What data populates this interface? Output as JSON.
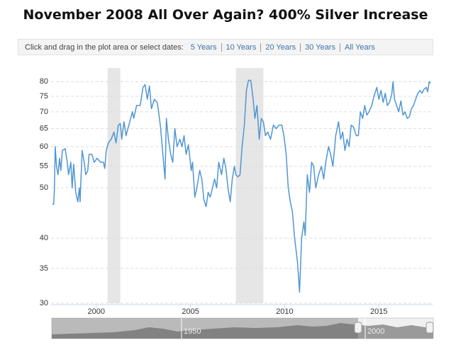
{
  "chart_data": {
    "type": "line",
    "title": "November 2008 All Over Again? 400% Silver Increase",
    "zoom_prompt": "Click and drag in the plot area or select dates:",
    "zoom_options": [
      "5 Years",
      "10 Years",
      "20 Years",
      "30 Years",
      "All Years"
    ],
    "navigator_labels": [
      "1950",
      "2000"
    ],
    "x": [
      1997.67,
      1997.74,
      1997.78,
      1997.82,
      1997.89,
      1997.97,
      1998.05,
      1998.12,
      1998.2,
      1998.35,
      1998.46,
      1998.53,
      1998.65,
      1998.72,
      1998.8,
      1998.91,
      1999.02,
      1999.1,
      1999.14,
      1999.25,
      1999.36,
      1999.44,
      1999.55,
      1999.62,
      1999.77,
      1999.89,
      2000.04,
      2000.23,
      2000.38,
      2000.45,
      2000.53,
      2000.64,
      2000.79,
      2000.94,
      2001.05,
      2001.17,
      2001.28,
      2001.35,
      2001.47,
      2001.58,
      2001.73,
      2001.92,
      2001.99,
      2002.14,
      2002.33,
      2002.48,
      2002.59,
      2002.71,
      2002.82,
      2002.93,
      2003.08,
      2003.23,
      2003.31,
      2003.42,
      2003.5,
      2003.57,
      2003.65,
      2003.72,
      2003.83,
      2003.95,
      2004.06,
      2004.17,
      2004.29,
      2004.44,
      2004.55,
      2004.66,
      2004.77,
      2004.89,
      2005.04,
      2005.11,
      2005.23,
      2005.34,
      2005.49,
      2005.6,
      2005.71,
      2005.83,
      2005.94,
      2006.05,
      2006.17,
      2006.28,
      2006.39,
      2006.5,
      2006.65,
      2006.77,
      2006.88,
      2006.99,
      2007.11,
      2007.22,
      2007.33,
      2007.41,
      2007.52,
      2007.63,
      2007.74,
      2007.86,
      2007.97,
      2008.08,
      2008.2,
      2008.31,
      2008.42,
      2008.53,
      2008.65,
      2008.76,
      2008.87,
      2008.98,
      2009.1,
      2009.25,
      2009.4,
      2009.55,
      2009.7,
      2009.85,
      2009.96,
      2010.08,
      2010.19,
      2010.3,
      2010.41,
      2010.53,
      2010.68,
      2010.79,
      2010.9,
      2011.02,
      2011.09,
      2011.2,
      2011.32,
      2011.43,
      2011.54,
      2011.65,
      2011.8,
      2011.95,
      2012.07,
      2012.18,
      2012.33,
      2012.44,
      2012.56,
      2012.71,
      2012.86,
      2012.97,
      2013.08,
      2013.2,
      2013.31,
      2013.42,
      2013.53,
      2013.65,
      2013.8,
      2013.91,
      2014.02,
      2014.14,
      2014.25,
      2014.36,
      2014.47,
      2014.62,
      2014.74,
      2014.89,
      2015.0,
      2015.11,
      2015.23,
      2015.34,
      2015.45,
      2015.56,
      2015.68,
      2015.75,
      2015.83,
      2015.94,
      2016.05,
      2016.17,
      2016.28,
      2016.39,
      2016.5,
      2016.62,
      2016.73,
      2016.84,
      2016.95,
      2017.07,
      2017.18,
      2017.29,
      2017.41,
      2017.52,
      2017.59,
      2017.67,
      2017.74
    ],
    "values": [
      46.5,
      46.5,
      50,
      60,
      55,
      53,
      57,
      54,
      59,
      59.5,
      56,
      53,
      56,
      50,
      55.5,
      49,
      47,
      50,
      47,
      59,
      56,
      53,
      54,
      58,
      58,
      56,
      57,
      56,
      56,
      54.5,
      59,
      61,
      62,
      64,
      61,
      66,
      66.5,
      62,
      67,
      63,
      66,
      70,
      68,
      72,
      72,
      78,
      79,
      74,
      78.5,
      71,
      74,
      73,
      70,
      65,
      60,
      56,
      52,
      68,
      62,
      58,
      56,
      65,
      60,
      62,
      60,
      63,
      58,
      60.5,
      54,
      56,
      48,
      50,
      54,
      52,
      47.5,
      46,
      49,
      48,
      50,
      52,
      50,
      56,
      53,
      57,
      54.5,
      50,
      47,
      52,
      55,
      53,
      52.5,
      53,
      60,
      66,
      77,
      80.5,
      80.5,
      75,
      68,
      72,
      62,
      68,
      67,
      63,
      64,
      62,
      66,
      65,
      66,
      66,
      63,
      58,
      50,
      47,
      45,
      40,
      36,
      31.5,
      40,
      43,
      40.5,
      53,
      49,
      56,
      55,
      50,
      53,
      55,
      52,
      56,
      60,
      58,
      55,
      63,
      67,
      62,
      64,
      59,
      62,
      60,
      66,
      65.5,
      63,
      63,
      70,
      68,
      72,
      69,
      70,
      72,
      75,
      78,
      74,
      77,
      73,
      76,
      72,
      73,
      75.5,
      80,
      74,
      72,
      70,
      73.5,
      69,
      70,
      68,
      68.5,
      71,
      72,
      74,
      76,
      77,
      76,
      77.5,
      78,
      76.5,
      80,
      79.5
    ],
    "color": "#4f96d3",
    "shaded_periods": [
      [
        2000.6,
        2001.28
      ],
      [
        2007.41,
        2008.87
      ]
    ],
    "shade_color": "#e6e6e6",
    "xlim": [
      1997.6,
      2017.85
    ],
    "xticks": [
      2000,
      2005,
      2010,
      2015
    ],
    "ylim": [
      30,
      85
    ],
    "yticks": [
      30,
      35,
      40,
      50,
      55,
      60,
      65,
      70,
      75,
      80
    ],
    "log_y": true,
    "grid": true
  }
}
